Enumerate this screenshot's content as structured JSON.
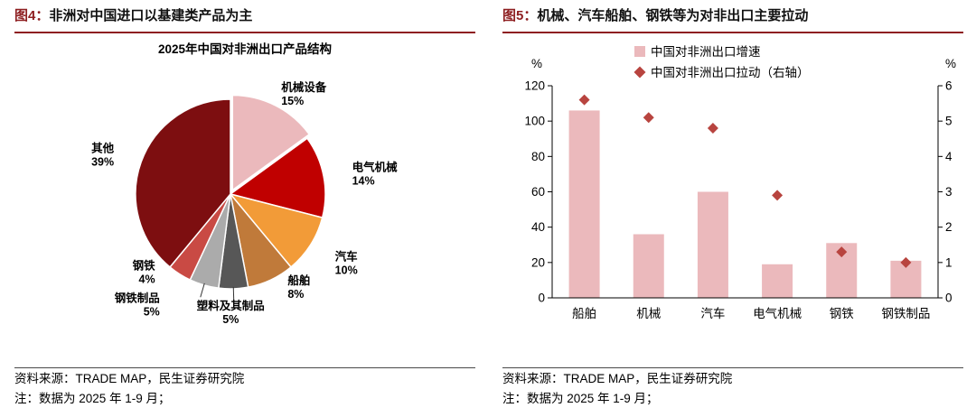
{
  "left_panel": {
    "fig_label": "图4：",
    "title": "非洲对中国进口以基建类产品为主",
    "source": "资料来源：TRADE MAP，民生证券研究院",
    "note": "注：数据为 2025 年 1-9 月；"
  },
  "right_panel": {
    "fig_label": "图5：",
    "title": "机械、汽车船舶、钢铁等为对非出口主要拉动",
    "source": "资料来源：TRADE MAP，民生证券研究院",
    "note": "注：数据为 2025 年 1-9 月；"
  },
  "colors": {
    "caption_accent": "#8E1F21",
    "bar_fill": "#EBB9BC",
    "diamond_fill": "#B8443F"
  },
  "chart_data": [
    {
      "type": "pie",
      "title": "2025年中国对非洲出口产品结构",
      "start_angle_deg": -90,
      "direction": "clockwise",
      "label_format": "name newline percent",
      "slices": [
        {
          "label": "机械设备",
          "value": 15,
          "color": "#EBB9BC"
        },
        {
          "label": "电气机械",
          "value": 14,
          "color": "#C00000"
        },
        {
          "label": "汽车",
          "value": 10,
          "color": "#F29B38"
        },
        {
          "label": "船舶",
          "value": 8,
          "color": "#C07A3A"
        },
        {
          "label": "塑料及其制品",
          "value": 5,
          "color": "#575757"
        },
        {
          "label": "钢铁制品",
          "value": 5,
          "color": "#ABABAB"
        },
        {
          "label": "钢铁",
          "value": 4,
          "color": "#C94A44"
        },
        {
          "label": "其他",
          "value": 39,
          "color": "#7D0E10"
        }
      ]
    },
    {
      "type": "bar",
      "categories": [
        "船舶",
        "机械",
        "汽车",
        "电气机械",
        "钢铁",
        "钢铁制品"
      ],
      "series": [
        {
          "name": "中国对非洲出口增速",
          "type": "bar",
          "axis": "left",
          "color": "#EBB9BC",
          "values": [
            106,
            36,
            60,
            19,
            31,
            21
          ]
        },
        {
          "name": "中国对非洲出口拉动（右轴）",
          "type": "scatter-diamond",
          "axis": "right",
          "color": "#B8443F",
          "values": [
            5.6,
            5.1,
            4.8,
            2.9,
            1.3,
            1.0
          ]
        }
      ],
      "left_axis": {
        "label": "%",
        "min": 0,
        "max": 120,
        "step": 20
      },
      "right_axis": {
        "label": "%",
        "min": 0,
        "max": 6,
        "step": 1
      },
      "grid": false,
      "legend_position": "top-center"
    }
  ]
}
